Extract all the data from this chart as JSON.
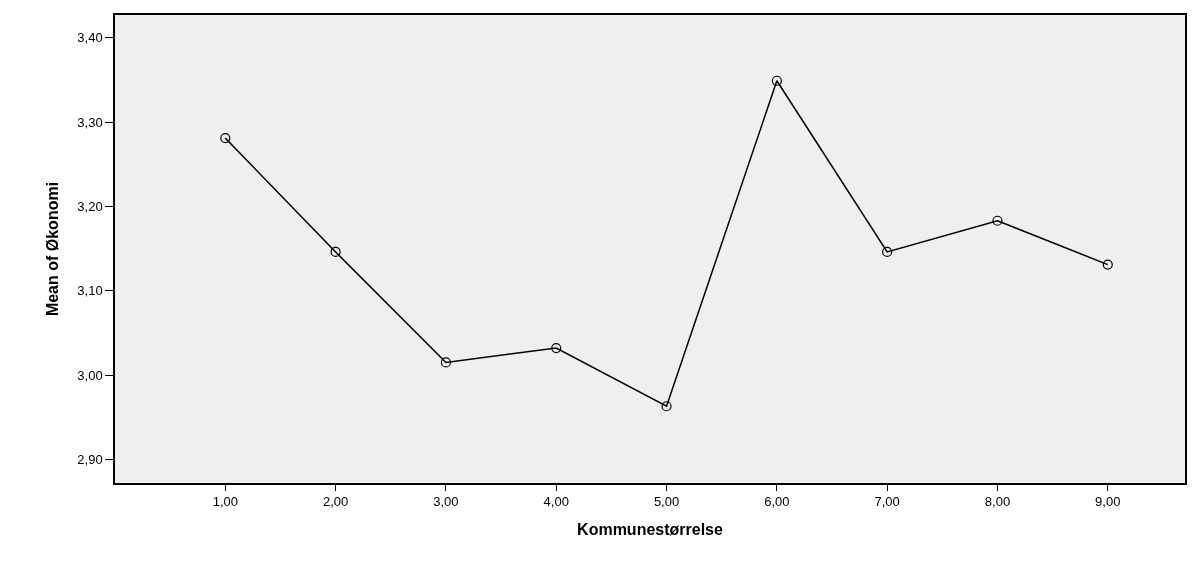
{
  "chart_data": {
    "type": "line",
    "xlabel": "Kommunestørrelse",
    "ylabel": "Mean of Økonomi",
    "categories": [
      "1,00",
      "2,00",
      "3,00",
      "4,00",
      "5,00",
      "6,00",
      "7,00",
      "8,00",
      "9,00"
    ],
    "series": [
      {
        "color": "#000000",
        "values": [
          3.281,
          3.146,
          3.015,
          3.032,
          2.963,
          3.349,
          3.146,
          3.183,
          3.131
        ]
      }
    ],
    "ylim": [
      2.872,
      3.427
    ],
    "yticks": [
      {
        "value": 2.9,
        "label": "2,90"
      },
      {
        "value": 3.0,
        "label": "3,00"
      },
      {
        "value": 3.1,
        "label": "3,10"
      },
      {
        "value": 3.2,
        "label": "3,20"
      },
      {
        "value": 3.3,
        "label": "3,30"
      },
      {
        "value": 3.4,
        "label": "3,40"
      }
    ],
    "grid": false,
    "marker": "circle",
    "line_style": "solid"
  }
}
